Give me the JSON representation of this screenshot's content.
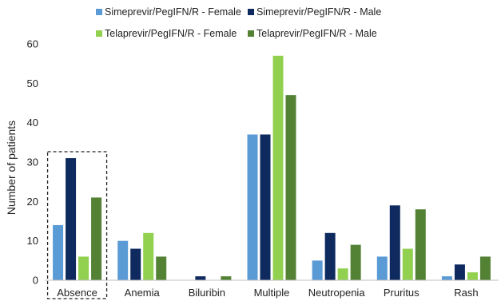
{
  "chart_data": {
    "type": "bar",
    "ylabel": "Number of patients",
    "ylim": [
      0,
      60
    ],
    "yticks": [
      0,
      10,
      20,
      30,
      40,
      50,
      60
    ],
    "grid": false,
    "legend_position": "top",
    "categories": [
      "Absence",
      "Anemia",
      "Biluribin",
      "Multiple",
      "Neutropenia",
      "Pruritus",
      "Rash"
    ],
    "highlighted_category": "Absence",
    "series": [
      {
        "name": "Simeprevir/PegIFN/R - Female",
        "color": "#5b9bd5",
        "values": [
          14,
          10,
          0,
          37,
          5,
          6,
          1
        ]
      },
      {
        "name": "Simeprevir/PegIFN/R - Male",
        "color": "#0e2a5e",
        "values": [
          31,
          8,
          1,
          37,
          12,
          19,
          4
        ]
      },
      {
        "name": "Telaprevir/PegIFN/R - Female",
        "color": "#92d050",
        "values": [
          6,
          12,
          0,
          57,
          3,
          8,
          2
        ]
      },
      {
        "name": "Telaprevir/PegIFN/R - Male",
        "color": "#548235",
        "values": [
          21,
          6,
          1,
          47,
          9,
          18,
          6
        ]
      }
    ]
  }
}
